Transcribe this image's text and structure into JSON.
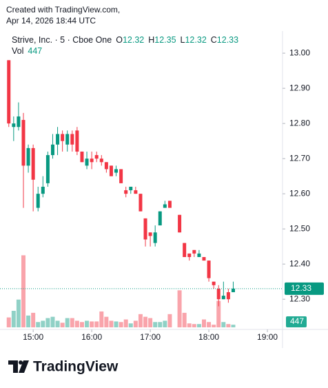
{
  "header": {
    "line1": "Created with TradingView.com,",
    "line2": "Apr 14, 2026 18:44 UTC"
  },
  "footer": {
    "brand": "TradingView"
  },
  "chart_data": {
    "type": "candlestick",
    "legend_title": "Strive, Inc. · 5 · Cboe One",
    "legend_labels": {
      "open": "O",
      "high": "H",
      "low": "L",
      "close": "C",
      "volume": "Vol"
    },
    "up_color": "#089981",
    "down_color": "#f23645",
    "grid": false,
    "x": [
      875,
      880,
      885,
      890,
      895,
      900,
      905,
      910,
      915,
      920,
      925,
      930,
      935,
      940,
      945,
      950,
      955,
      960,
      965,
      970,
      975,
      980,
      985,
      990,
      995,
      1000,
      1005,
      1010,
      1015,
      1020,
      1025,
      1030,
      1035,
      1040,
      1050,
      1055,
      1060,
      1065,
      1070,
      1075,
      1080,
      1085,
      1090,
      1095,
      1100,
      1105
    ],
    "open": [
      12.98,
      12.79,
      12.79,
      12.81,
      12.68,
      12.73,
      12.56,
      12.6,
      12.63,
      12.71,
      12.74,
      12.77,
      12.74,
      12.77,
      12.78,
      12.72,
      12.68,
      12.7,
      12.71,
      12.7,
      12.69,
      12.68,
      12.66,
      12.67,
      12.61,
      12.61,
      12.61,
      12.6,
      12.53,
      12.49,
      12.46,
      12.51,
      12.56,
      12.58,
      12.54,
      12.46,
      12.43,
      12.44,
      12.42,
      12.42,
      12.41,
      12.35,
      12.33,
      12.3,
      12.32,
      12.32
    ],
    "high": [
      12.98,
      12.82,
      12.86,
      12.83,
      12.74,
      12.74,
      12.62,
      12.65,
      12.72,
      12.77,
      12.79,
      12.78,
      12.78,
      12.78,
      12.79,
      12.72,
      12.72,
      12.72,
      12.72,
      12.71,
      12.69,
      12.68,
      12.68,
      12.67,
      12.62,
      12.62,
      12.62,
      12.6,
      12.53,
      12.49,
      12.51,
      12.55,
      12.58,
      12.58,
      12.54,
      12.46,
      12.43,
      12.44,
      12.44,
      12.42,
      12.41,
      12.35,
      12.34,
      12.35,
      12.33,
      12.35
    ],
    "low": [
      12.79,
      12.75,
      12.78,
      12.56,
      12.66,
      12.55,
      12.55,
      12.59,
      12.62,
      12.7,
      12.71,
      12.72,
      12.72,
      12.72,
      12.71,
      12.69,
      12.67,
      12.67,
      12.69,
      12.68,
      12.66,
      12.65,
      12.65,
      12.63,
      12.59,
      12.6,
      12.6,
      12.55,
      12.45,
      12.45,
      12.45,
      12.51,
      12.56,
      12.56,
      12.49,
      12.42,
      12.41,
      12.42,
      12.42,
      12.41,
      12.35,
      12.33,
      12.28,
      12.3,
      12.29,
      12.32
    ],
    "close": [
      12.8,
      12.8,
      12.82,
      12.68,
      12.73,
      12.64,
      12.6,
      12.62,
      12.71,
      12.74,
      12.77,
      12.75,
      12.77,
      12.74,
      12.72,
      12.69,
      12.7,
      12.69,
      12.7,
      12.69,
      12.67,
      12.65,
      12.67,
      12.63,
      12.6,
      12.62,
      12.6,
      12.55,
      12.47,
      12.48,
      12.49,
      12.55,
      12.57,
      12.56,
      12.49,
      12.42,
      12.42,
      12.43,
      12.43,
      12.41,
      12.36,
      12.34,
      12.3,
      12.31,
      12.3,
      12.33
    ],
    "volume": [
      1680,
      2800,
      4700,
      12200,
      2000,
      2460,
      900,
      1120,
      1570,
      1790,
      1120,
      780,
      1570,
      1570,
      1120,
      900,
      1120,
      1000,
      1000,
      2690,
      1790,
      1120,
      1000,
      900,
      1340,
      670,
      1120,
      2240,
      1790,
      1570,
      900,
      900,
      1120,
      2240,
      6270,
      2460,
      670,
      560,
      560,
      1340,
      900,
      450,
      4480,
      900,
      560,
      447
    ],
    "xlim": [
      866,
      1155.5
    ],
    "xticks": [
      {
        "value": 900,
        "label": "15:00"
      },
      {
        "value": 960,
        "label": "16:00"
      },
      {
        "value": 1020,
        "label": "17:00"
      },
      {
        "value": 1080,
        "label": "18:00"
      },
      {
        "value": 1140,
        "label": "19:00"
      }
    ],
    "ylim": [
      12.22,
      13.063
    ],
    "yticks": [
      {
        "value": 13.0,
        "label": "13.00"
      },
      {
        "value": 12.9,
        "label": "12.90"
      },
      {
        "value": 12.8,
        "label": "12.80"
      },
      {
        "value": 12.7,
        "label": "12.70"
      },
      {
        "value": 12.6,
        "label": "12.60"
      },
      {
        "value": 12.5,
        "label": "12.50"
      },
      {
        "value": 12.4,
        "label": "12.40"
      },
      {
        "value": 12.3,
        "label": "12.30"
      }
    ],
    "volume_lim": [
      0,
      14000
    ]
  }
}
